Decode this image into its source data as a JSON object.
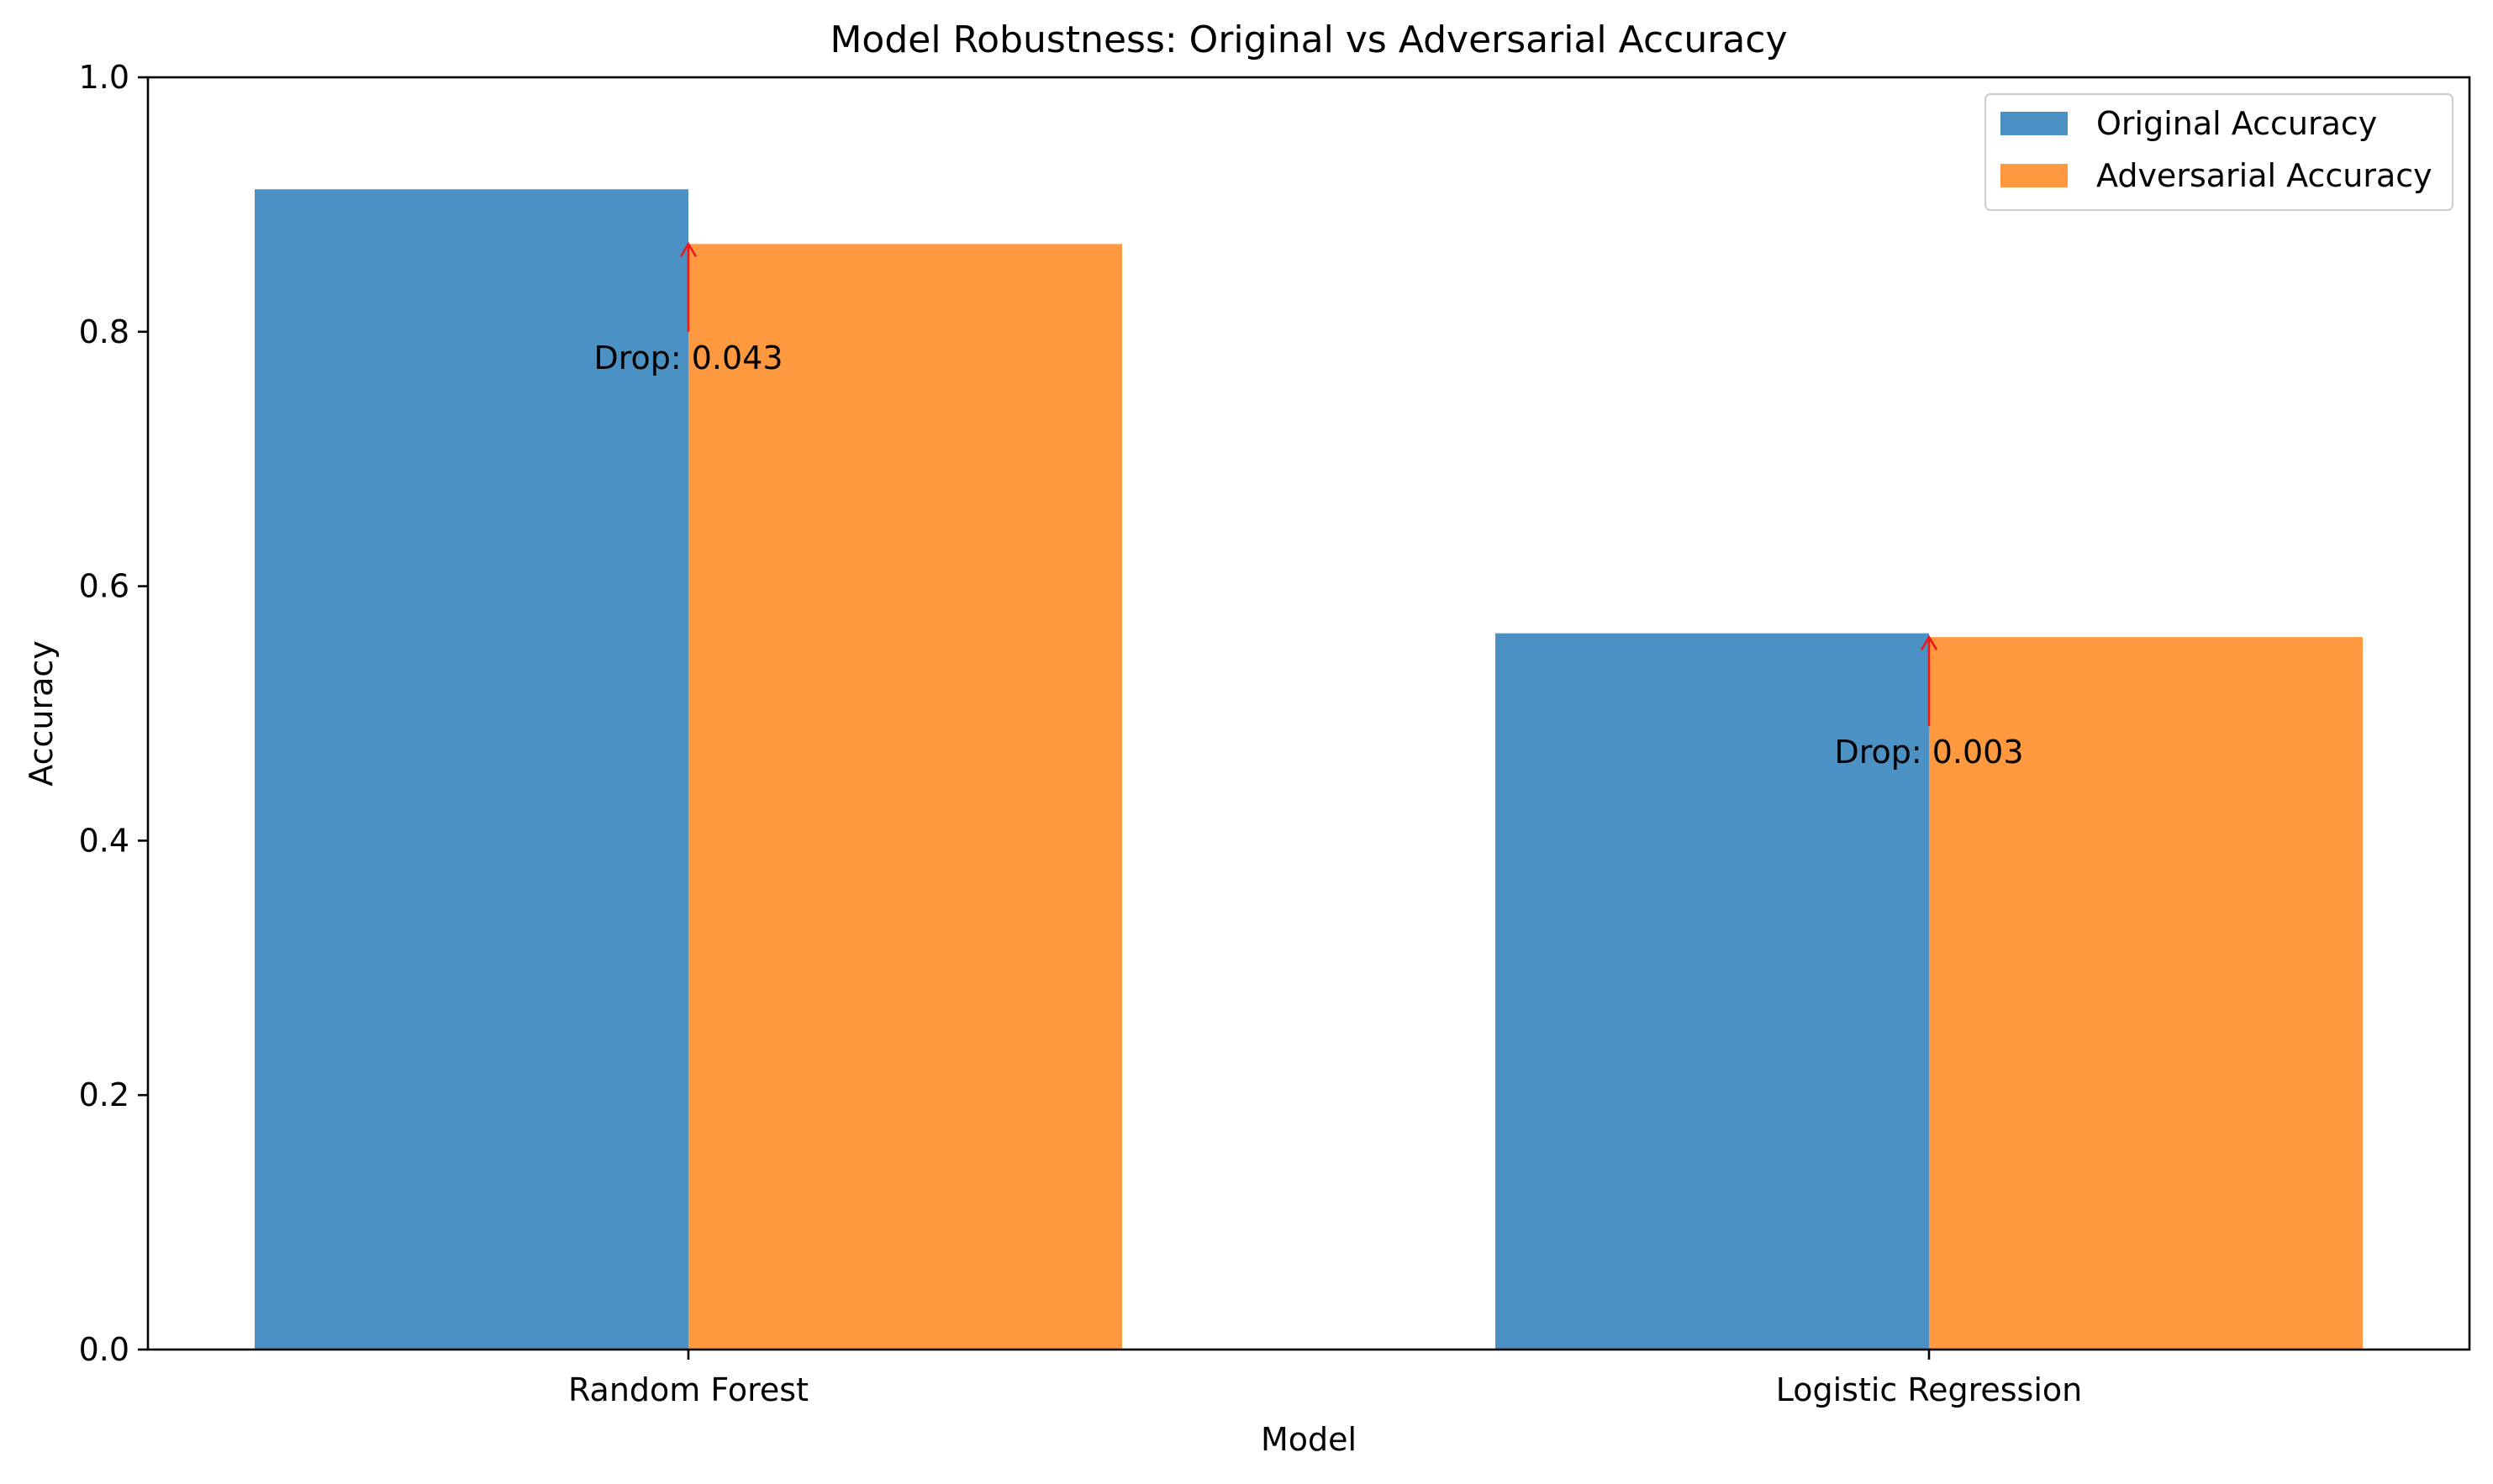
{
  "chart_data": {
    "type": "bar",
    "title": "Model Robustness: Original vs Adversarial Accuracy",
    "xlabel": "Model",
    "ylabel": "Accuracy",
    "categories": [
      "Random Forest",
      "Logistic Regression"
    ],
    "series": [
      {
        "name": "Original Accuracy",
        "values": [
          0.912,
          0.563
        ],
        "color": "#4c91c3"
      },
      {
        "name": "Adversarial Accuracy",
        "values": [
          0.869,
          0.56
        ],
        "color": "#ff9940"
      }
    ],
    "ylim": [
      0,
      1.0
    ],
    "yticks": [
      "0.0",
      "0.2",
      "0.4",
      "0.6",
      "0.8",
      "1.0"
    ],
    "grid": false,
    "legend": "top-right",
    "annotations": [
      {
        "category": "Random Forest",
        "text": "Drop: 0.043",
        "arrow_from": 0.8,
        "arrow_to": 0.869,
        "color": "#e8191f"
      },
      {
        "category": "Logistic Regression",
        "text": "Drop: 0.003",
        "arrow_from": 0.49,
        "arrow_to": 0.56,
        "color": "#e8191f"
      }
    ]
  }
}
